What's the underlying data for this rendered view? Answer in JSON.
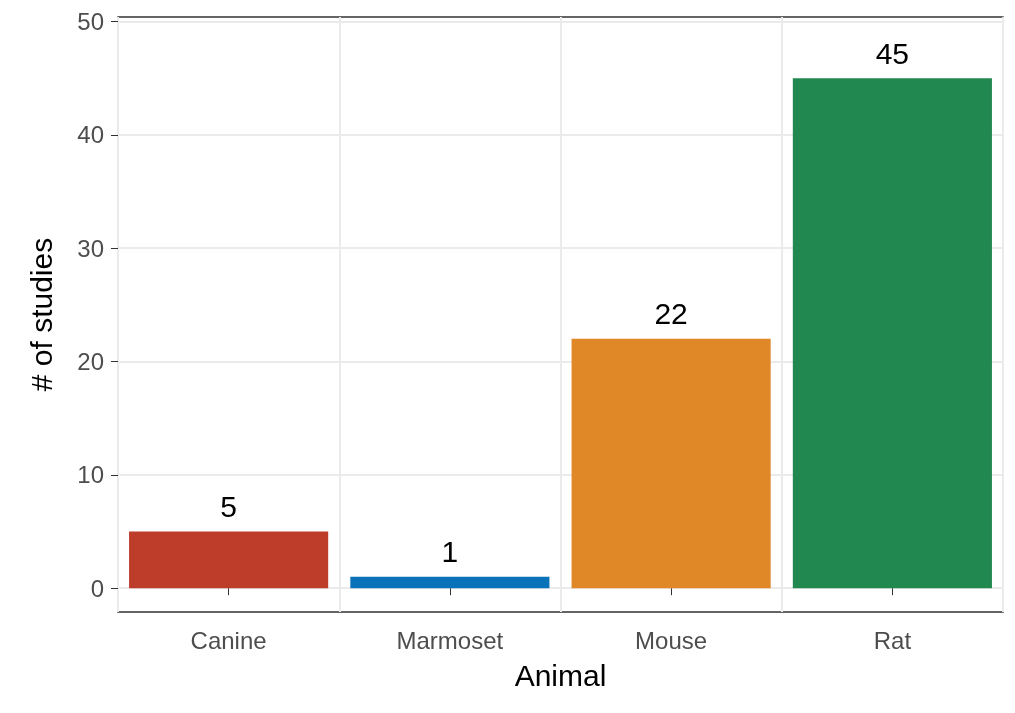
{
  "chart_data": {
    "type": "bar",
    "xlabel": "Animal",
    "ylabel": "# of studies",
    "categories": [
      "Canine",
      "Marmoset",
      "Mouse",
      "Rat"
    ],
    "values": [
      5,
      1,
      22,
      45
    ],
    "colors": [
      "#bd3c2a",
      "#0a72b8",
      "#e08828",
      "#21884f"
    ],
    "ylim": [
      -2.1,
      50.4
    ],
    "yticks": [
      0,
      10,
      20,
      30,
      40,
      50
    ],
    "grid": true,
    "data_labels": true
  }
}
